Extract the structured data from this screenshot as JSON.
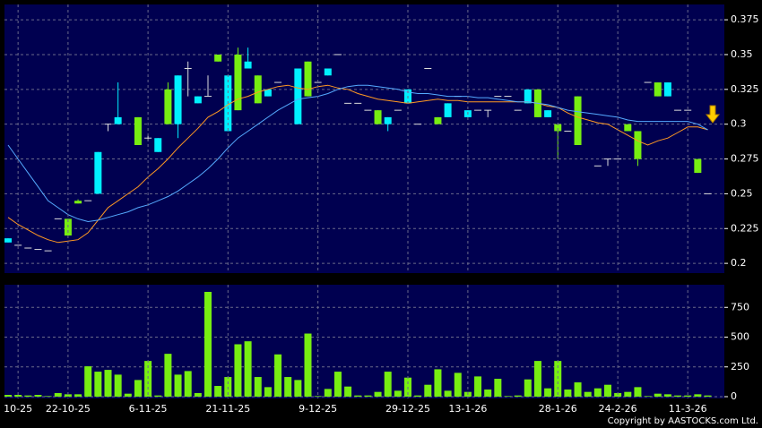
{
  "chart_data": [
    {
      "type": "candlestick",
      "up_color": "#00f0ff",
      "down_color": "#77ee11",
      "flat_color": "#dddddd",
      "open": [
        0.215,
        0.213,
        0.211,
        0.21,
        0.209,
        0.232,
        0.232,
        0.245,
        0.245,
        0.25,
        0.3,
        0.3,
        null,
        0.305,
        0.29,
        0.28,
        0.325,
        0.3,
        0.34,
        0.315,
        0.32,
        0.35,
        0.295,
        0.35,
        0.34,
        0.335,
        0.32,
        0.33,
        null,
        0.3,
        0.345,
        0.33,
        0.335,
        0.35,
        0.315,
        0.315,
        0.31,
        0.31,
        0.3,
        0.31,
        0.315,
        0.3,
        0.34,
        0.305,
        0.305,
        0.32,
        0.305,
        0.31,
        0.31,
        0.32,
        0.32,
        0.31,
        0.315,
        0.325,
        0.305,
        0.3,
        0.295,
        0.32,
        null,
        0.27,
        0.275,
        0.275,
        0.3,
        0.295,
        0.33,
        0.33,
        0.32,
        0.31,
        0.31,
        0.275,
        0.25
      ],
      "high": [
        0.218,
        0.213,
        0.211,
        0.21,
        0.209,
        0.232,
        0.232,
        0.246,
        0.245,
        0.28,
        0.3,
        0.33,
        null,
        0.305,
        0.292,
        0.29,
        0.33,
        0.335,
        0.345,
        0.32,
        0.335,
        0.35,
        0.335,
        0.355,
        0.355,
        0.335,
        0.325,
        0.33,
        null,
        0.34,
        0.345,
        0.33,
        0.34,
        0.35,
        0.315,
        0.315,
        0.31,
        0.31,
        0.305,
        0.31,
        0.325,
        0.3,
        0.34,
        0.305,
        0.315,
        0.32,
        0.31,
        0.31,
        0.31,
        0.32,
        0.32,
        0.31,
        0.325,
        0.325,
        0.31,
        0.3,
        0.295,
        0.32,
        null,
        0.27,
        0.275,
        0.275,
        0.3,
        0.295,
        0.33,
        0.33,
        0.33,
        0.31,
        0.31,
        0.275,
        0.25
      ],
      "low": [
        0.215,
        0.213,
        0.211,
        0.21,
        0.209,
        0.232,
        0.22,
        0.243,
        0.245,
        0.25,
        0.295,
        0.3,
        null,
        0.285,
        0.288,
        0.28,
        0.3,
        0.29,
        0.32,
        0.315,
        0.32,
        0.345,
        0.295,
        0.31,
        0.34,
        0.315,
        0.32,
        0.33,
        null,
        0.3,
        0.32,
        0.33,
        0.335,
        0.35,
        0.315,
        0.315,
        0.31,
        0.3,
        0.295,
        0.31,
        0.315,
        0.3,
        0.34,
        0.3,
        0.305,
        0.32,
        0.305,
        0.31,
        0.305,
        0.32,
        0.32,
        0.31,
        0.315,
        0.305,
        0.305,
        0.275,
        0.295,
        0.285,
        null,
        0.27,
        0.27,
        0.275,
        0.295,
        0.27,
        0.33,
        0.32,
        0.32,
        0.31,
        0.31,
        0.265,
        0.25
      ],
      "close": [
        0.218,
        0.213,
        0.211,
        0.21,
        0.209,
        0.232,
        0.22,
        0.243,
        0.245,
        0.28,
        0.3,
        0.305,
        null,
        0.285,
        0.29,
        0.29,
        0.3,
        0.335,
        0.34,
        0.32,
        0.32,
        0.345,
        0.335,
        0.31,
        0.345,
        0.315,
        0.325,
        0.33,
        null,
        0.34,
        0.32,
        0.33,
        0.34,
        0.35,
        0.315,
        0.315,
        0.31,
        0.3,
        0.305,
        0.31,
        0.325,
        0.3,
        0.34,
        0.3,
        0.315,
        0.32,
        0.31,
        0.31,
        0.31,
        0.32,
        0.32,
        0.31,
        0.325,
        0.305,
        0.31,
        0.295,
        0.295,
        0.285,
        null,
        0.27,
        0.275,
        0.275,
        0.295,
        0.275,
        0.33,
        0.32,
        0.33,
        0.31,
        0.31,
        0.265,
        0.25
      ],
      "lines": [
        {
          "color": "#ff9922",
          "values": [
            0.233,
            0.228,
            0.224,
            0.22,
            0.217,
            0.215,
            0.216,
            0.217,
            0.222,
            0.231,
            0.24,
            0.245,
            0.25,
            0.255,
            0.262,
            0.268,
            0.275,
            0.283,
            0.29,
            0.297,
            0.305,
            0.309,
            0.314,
            0.318,
            0.32,
            0.323,
            0.325,
            0.327,
            0.328,
            0.326,
            0.325,
            0.327,
            0.328,
            0.326,
            0.325,
            0.322,
            0.32,
            0.318,
            0.317,
            0.316,
            0.315,
            0.316,
            0.317,
            0.318,
            0.317,
            0.317,
            0.316,
            0.316,
            0.316,
            0.316,
            0.316,
            0.316,
            0.316,
            0.315,
            0.313,
            0.312,
            0.308,
            0.305,
            0.303,
            0.301,
            0.3,
            0.296,
            0.292,
            0.288,
            0.285,
            0.288,
            0.29,
            0.294,
            0.298,
            0.298,
            0.296
          ]
        },
        {
          "color": "#55aaff",
          "values": [
            0.285,
            0.275,
            0.265,
            0.255,
            0.245,
            0.24,
            0.235,
            0.232,
            0.23,
            0.231,
            0.233,
            0.235,
            0.237,
            0.24,
            0.242,
            0.245,
            0.248,
            0.252,
            0.257,
            0.262,
            0.268,
            0.275,
            0.283,
            0.29,
            0.295,
            0.3,
            0.305,
            0.31,
            0.314,
            0.318,
            0.319,
            0.32,
            0.322,
            0.325,
            0.327,
            0.328,
            0.328,
            0.327,
            0.326,
            0.325,
            0.323,
            0.322,
            0.322,
            0.321,
            0.32,
            0.32,
            0.32,
            0.319,
            0.319,
            0.318,
            0.317,
            0.316,
            0.316,
            0.315,
            0.314,
            0.312,
            0.31,
            0.309,
            0.308,
            0.307,
            0.306,
            0.305,
            0.303,
            0.302,
            0.302,
            0.302,
            0.302,
            0.302,
            0.302,
            0.3,
            0.296
          ]
        }
      ],
      "ylim": [
        0.193,
        0.386
      ],
      "yticks": [
        0.2,
        0.225,
        0.25,
        0.275,
        0.3,
        0.325,
        0.35,
        0.375
      ],
      "grid": true
    },
    {
      "type": "bar",
      "color": "#77ee11",
      "categories": [
        null,
        "10-25",
        null,
        null,
        null,
        null,
        "22-10-25",
        null,
        null,
        null,
        null,
        null,
        null,
        null,
        "6-11-25",
        null,
        null,
        null,
        null,
        null,
        null,
        null,
        "21-11-25",
        null,
        null,
        null,
        null,
        null,
        null,
        null,
        null,
        "9-12-25",
        null,
        null,
        null,
        null,
        null,
        null,
        null,
        null,
        "29-12-25",
        null,
        null,
        null,
        null,
        null,
        "13-1-26",
        null,
        null,
        null,
        null,
        null,
        null,
        null,
        null,
        "28-1-26",
        null,
        null,
        null,
        null,
        null,
        "24-2-26",
        null,
        null,
        null,
        null,
        null,
        null,
        "11-3-26",
        null,
        null
      ],
      "values": [
        15,
        15,
        10,
        15,
        5,
        30,
        20,
        20,
        255,
        210,
        225,
        185,
        25,
        140,
        300,
        10,
        360,
        185,
        215,
        30,
        880,
        90,
        165,
        440,
        465,
        165,
        80,
        355,
        165,
        140,
        530,
        5,
        65,
        210,
        85,
        10,
        10,
        40,
        210,
        50,
        160,
        10,
        100,
        230,
        50,
        200,
        40,
        170,
        60,
        150,
        5,
        10,
        145,
        300,
        70,
        300,
        60,
        120,
        40,
        70,
        100,
        30,
        40,
        80,
        5,
        25,
        20,
        10,
        10,
        20,
        10
      ],
      "ylim": [
        0,
        940
      ],
      "yticks": [
        0,
        250,
        500,
        750
      ],
      "grid": true,
      "note": "Copyright by AASTOCKS.com Ltd."
    }
  ]
}
